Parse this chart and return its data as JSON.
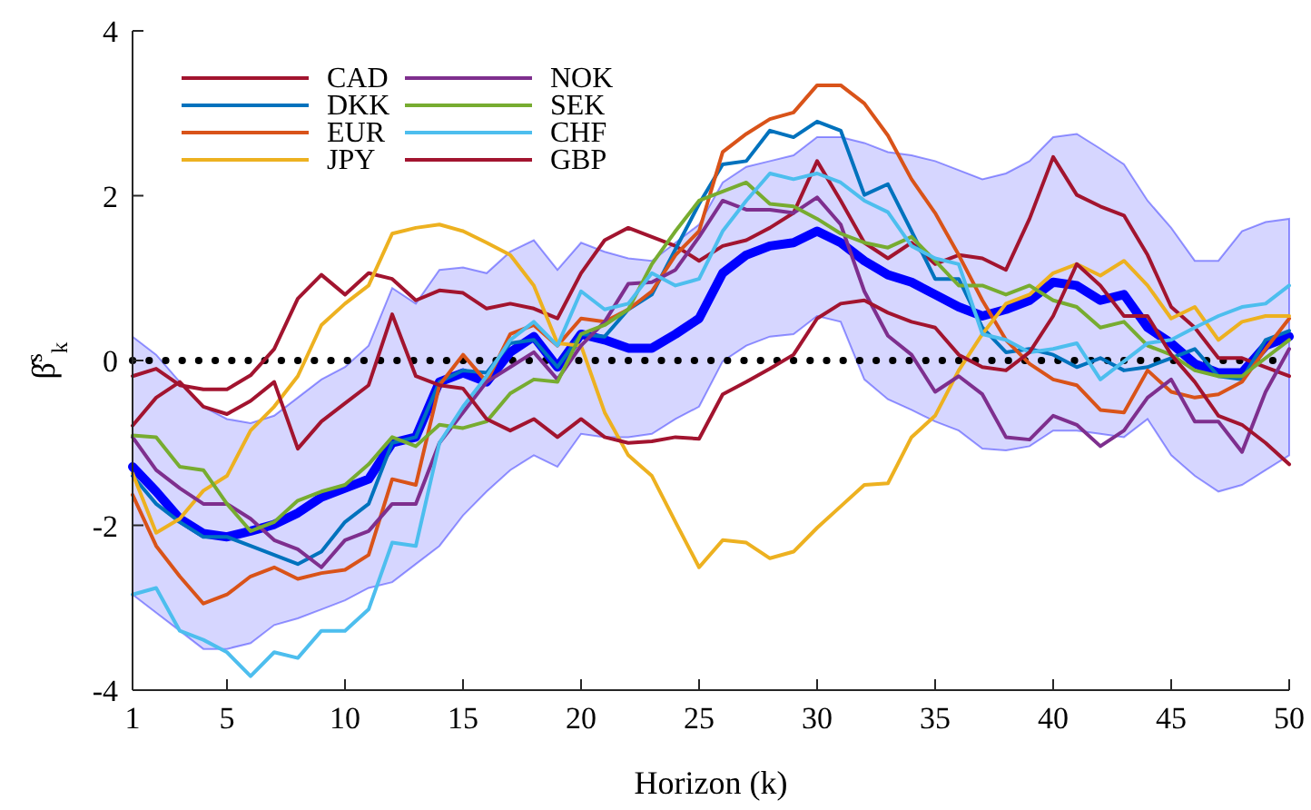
{
  "chart_data": {
    "type": "line",
    "xlabel": "Horizon (k)",
    "ylabel": "β̂$^{s}$$_{k}$",
    "x": [
      1,
      2,
      3,
      4,
      5,
      6,
      7,
      8,
      9,
      10,
      11,
      12,
      13,
      14,
      15,
      16,
      17,
      18,
      19,
      20,
      21,
      22,
      23,
      24,
      25,
      26,
      27,
      28,
      29,
      30,
      31,
      32,
      33,
      34,
      35,
      36,
      37,
      38,
      39,
      40,
      41,
      42,
      43,
      44,
      45,
      46,
      47,
      48,
      49,
      50
    ],
    "xlim": [
      1,
      50
    ],
    "xticks": [
      1,
      5,
      10,
      15,
      20,
      25,
      30,
      35,
      40,
      45,
      50
    ],
    "ylim": [
      -4,
      4
    ],
    "yticks": [
      -4,
      -2,
      0,
      2,
      4
    ],
    "grid": false,
    "legend": "top left",
    "line_style": "solid",
    "marker": "none",
    "ref_lines": [
      {
        "axis": "y",
        "value": 0,
        "color": "#000000",
        "line_style": "dotted"
      }
    ],
    "series": [
      {
        "color": "#0000ff",
        "values": [
          -1.29,
          -1.59,
          -1.92,
          -2.1,
          -2.14,
          -2.07,
          -1.99,
          -1.85,
          -1.66,
          -1.55,
          -1.44,
          -1.0,
          -0.93,
          -0.26,
          -0.15,
          -0.26,
          0.1,
          0.29,
          -0.08,
          0.32,
          0.25,
          0.15,
          0.15,
          0.32,
          0.51,
          1.06,
          1.28,
          1.39,
          1.43,
          1.57,
          1.43,
          1.21,
          1.04,
          0.95,
          0.8,
          0.65,
          0.54,
          0.62,
          0.73,
          0.95,
          0.91,
          0.73,
          0.8,
          0.4,
          0.21,
          -0.04,
          -0.15,
          -0.15,
          0.18,
          0.29
        ],
        "lower": [
          -2.84,
          -3.06,
          -3.28,
          -3.5,
          -3.5,
          -3.43,
          -3.21,
          -3.13,
          -3.02,
          -2.91,
          -2.76,
          -2.69,
          -2.47,
          -2.25,
          -1.88,
          -1.59,
          -1.33,
          -1.15,
          -1.29,
          -0.89,
          -0.93,
          -0.93,
          -0.89,
          -0.71,
          -0.56,
          -0.01,
          0.18,
          0.29,
          0.32,
          0.54,
          0.47,
          -0.23,
          -0.47,
          -0.6,
          -0.74,
          -0.85,
          -1.07,
          -1.09,
          -1.04,
          -0.85,
          -0.85,
          -0.89,
          -0.93,
          -0.71,
          -1.15,
          -1.4,
          -1.59,
          -1.51,
          -1.33,
          -1.15
        ],
        "upper": [
          0.29,
          0.07,
          -0.26,
          -0.56,
          -0.71,
          -0.76,
          -0.67,
          -0.45,
          -0.23,
          -0.08,
          0.18,
          0.88,
          0.69,
          1.1,
          1.13,
          1.06,
          1.32,
          1.46,
          1.1,
          1.43,
          1.32,
          1.24,
          1.21,
          1.43,
          1.65,
          2.16,
          2.35,
          2.42,
          2.49,
          2.71,
          2.71,
          2.64,
          2.53,
          2.49,
          2.42,
          2.31,
          2.2,
          2.27,
          2.42,
          2.71,
          2.75,
          2.57,
          2.38,
          1.94,
          1.61,
          1.21,
          1.21,
          1.57,
          1.68,
          1.72
        ]
      },
      {
        "name": "CAD",
        "color": "#a2142f",
        "values": [
          -0.19,
          -0.1,
          -0.3,
          -0.35,
          -0.35,
          -0.18,
          0.14,
          0.75,
          1.04,
          0.8,
          1.06,
          0.99,
          0.73,
          0.85,
          0.82,
          0.63,
          0.69,
          0.63,
          0.51,
          1.06,
          1.46,
          1.61,
          1.5,
          1.39,
          1.21,
          1.39,
          1.46,
          1.61,
          1.79,
          2.42,
          1.94,
          1.43,
          1.24,
          1.43,
          1.17,
          1.28,
          1.24,
          1.1,
          1.72,
          2.47,
          2.01,
          1.87,
          1.76,
          1.28,
          0.65,
          0.4,
          0.03,
          0.03,
          -0.08,
          -0.19
        ]
      },
      {
        "name": "DKK",
        "color": "#0072bd",
        "values": [
          -1.4,
          -1.74,
          -1.96,
          -2.14,
          -2.14,
          -2.25,
          -2.36,
          -2.47,
          -2.32,
          -1.96,
          -1.74,
          -1.0,
          -0.93,
          -0.26,
          -0.12,
          -0.15,
          0.21,
          0.25,
          -0.08,
          0.32,
          0.29,
          0.62,
          0.8,
          1.35,
          1.9,
          2.38,
          2.42,
          2.79,
          2.71,
          2.9,
          2.79,
          2.01,
          2.14,
          1.57,
          0.99,
          0.99,
          0.4,
          0.1,
          0.14,
          0.07,
          -0.08,
          0.03,
          -0.12,
          -0.08,
          0.03,
          0.14,
          -0.19,
          -0.23,
          0.25,
          0.36
        ]
      },
      {
        "name": "EUR",
        "color": "#d95319",
        "values": [
          -1.63,
          -2.25,
          -2.62,
          -2.95,
          -2.84,
          -2.62,
          -2.51,
          -2.65,
          -2.58,
          -2.54,
          -2.36,
          -1.44,
          -1.51,
          -0.3,
          0.07,
          -0.26,
          0.32,
          0.43,
          0.18,
          0.51,
          0.47,
          0.62,
          0.84,
          1.28,
          1.57,
          2.53,
          2.75,
          2.93,
          3.01,
          3.34,
          3.34,
          3.12,
          2.73,
          2.2,
          1.79,
          1.28,
          0.73,
          0.25,
          -0.04,
          -0.23,
          -0.3,
          -0.6,
          -0.63,
          -0.12,
          -0.38,
          -0.45,
          -0.41,
          -0.26,
          0.14,
          0.51
        ]
      },
      {
        "name": "JPY",
        "color": "#edb120",
        "values": [
          -1.37,
          -2.09,
          -1.92,
          -1.58,
          -1.4,
          -0.85,
          -0.56,
          -0.19,
          0.43,
          0.69,
          0.91,
          1.54,
          1.61,
          1.65,
          1.57,
          1.43,
          1.28,
          0.91,
          0.21,
          0.18,
          -0.63,
          -1.15,
          -1.4,
          -1.96,
          -2.51,
          -2.18,
          -2.21,
          -2.4,
          -2.32,
          -2.03,
          -1.77,
          -1.51,
          -1.49,
          -0.93,
          -0.67,
          -0.12,
          0.32,
          0.69,
          0.8,
          1.06,
          1.17,
          1.03,
          1.21,
          0.91,
          0.51,
          0.65,
          0.25,
          0.47,
          0.54,
          0.54
        ]
      },
      {
        "name": "NOK",
        "color": "#7e2f8e",
        "values": [
          -0.93,
          -1.33,
          -1.55,
          -1.74,
          -1.74,
          -1.92,
          -2.18,
          -2.29,
          -2.51,
          -2.18,
          -2.07,
          -1.74,
          -1.74,
          -1.0,
          -0.63,
          -0.26,
          -0.08,
          0.1,
          -0.23,
          0.18,
          0.47,
          0.93,
          0.95,
          1.1,
          1.5,
          1.94,
          1.83,
          1.83,
          1.79,
          1.98,
          1.65,
          0.84,
          0.3,
          0.07,
          -0.38,
          -0.19,
          -0.41,
          -0.93,
          -0.96,
          -0.67,
          -0.78,
          -1.04,
          -0.85,
          -0.45,
          -0.23,
          -0.74,
          -0.74,
          -1.11,
          -0.38,
          0.14
        ]
      },
      {
        "name": "SEK",
        "color": "#77ac30",
        "values": [
          -0.91,
          -0.93,
          -1.29,
          -1.33,
          -1.74,
          -2.07,
          -1.96,
          -1.7,
          -1.59,
          -1.51,
          -1.26,
          -0.93,
          -1.04,
          -0.78,
          -0.82,
          -0.74,
          -0.4,
          -0.23,
          -0.26,
          0.32,
          0.43,
          0.62,
          1.17,
          1.57,
          1.94,
          2.05,
          2.16,
          1.9,
          1.87,
          1.72,
          1.54,
          1.43,
          1.37,
          1.5,
          1.21,
          0.91,
          0.91,
          0.8,
          0.91,
          0.73,
          0.65,
          0.4,
          0.47,
          0.18,
          0.07,
          -0.12,
          -0.19,
          -0.19,
          0.03,
          0.25
        ]
      },
      {
        "name": "CHF",
        "color": "#4dbeee",
        "values": [
          -2.84,
          -2.76,
          -3.28,
          -3.39,
          -3.54,
          -3.83,
          -3.54,
          -3.61,
          -3.28,
          -3.28,
          -3.02,
          -2.21,
          -2.25,
          -1.0,
          -0.56,
          -0.19,
          0.25,
          0.47,
          0.18,
          0.84,
          0.62,
          0.69,
          1.06,
          0.91,
          0.99,
          1.57,
          1.94,
          2.27,
          2.2,
          2.27,
          2.16,
          1.94,
          1.8,
          1.39,
          1.24,
          1.17,
          0.32,
          0.25,
          0.1,
          0.14,
          0.21,
          -0.23,
          -0.01,
          0.21,
          0.25,
          0.4,
          0.54,
          0.65,
          0.69,
          0.91
        ]
      },
      {
        "name": "GBP",
        "color": "#a2142f",
        "values": [
          -0.79,
          -0.45,
          -0.26,
          -0.56,
          -0.65,
          -0.49,
          -0.26,
          -1.07,
          -0.74,
          -0.52,
          -0.3,
          0.56,
          -0.19,
          -0.3,
          -0.34,
          -0.71,
          -0.85,
          -0.71,
          -0.93,
          -0.71,
          -0.93,
          -1.0,
          -0.98,
          -0.93,
          -0.95,
          -0.41,
          -0.26,
          -0.1,
          0.07,
          0.51,
          0.69,
          0.73,
          0.58,
          0.47,
          0.4,
          0.07,
          -0.08,
          -0.12,
          0.1,
          0.54,
          1.17,
          0.91,
          0.54,
          0.54,
          0.07,
          -0.26,
          -0.67,
          -0.78,
          -1.0,
          -1.26
        ]
      }
    ]
  }
}
